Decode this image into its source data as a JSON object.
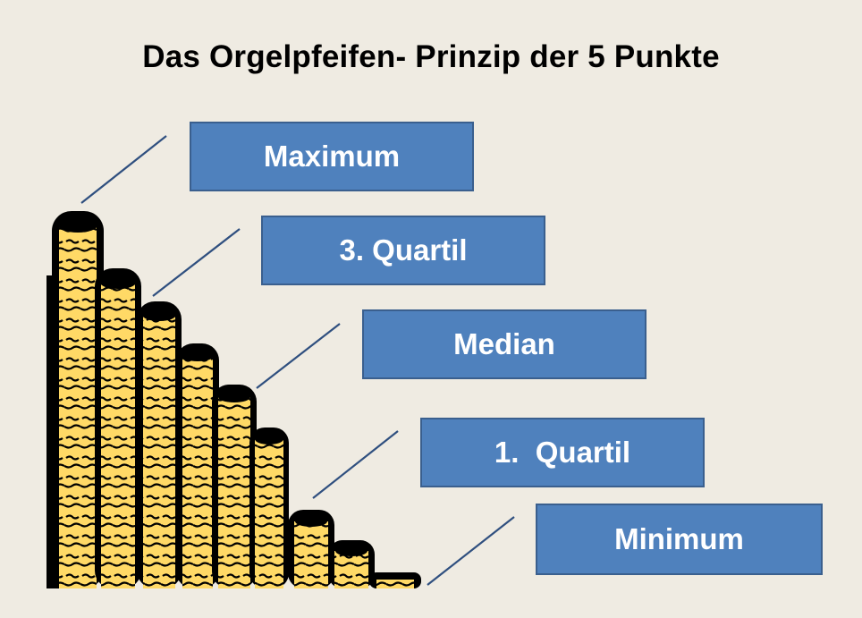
{
  "title": "Das Orgelpfeifen- Prinzip der 5 Punkte",
  "labels": [
    "Maximum",
    "3. Quartil",
    "Median",
    "1.  Quartil",
    "Minimum"
  ],
  "colors": {
    "box_fill": "#4f81bd",
    "pipe_fill": "#ffd966",
    "pipe_outline": "#000000",
    "background": "#efebe2",
    "connector": "#2f4f7f"
  }
}
